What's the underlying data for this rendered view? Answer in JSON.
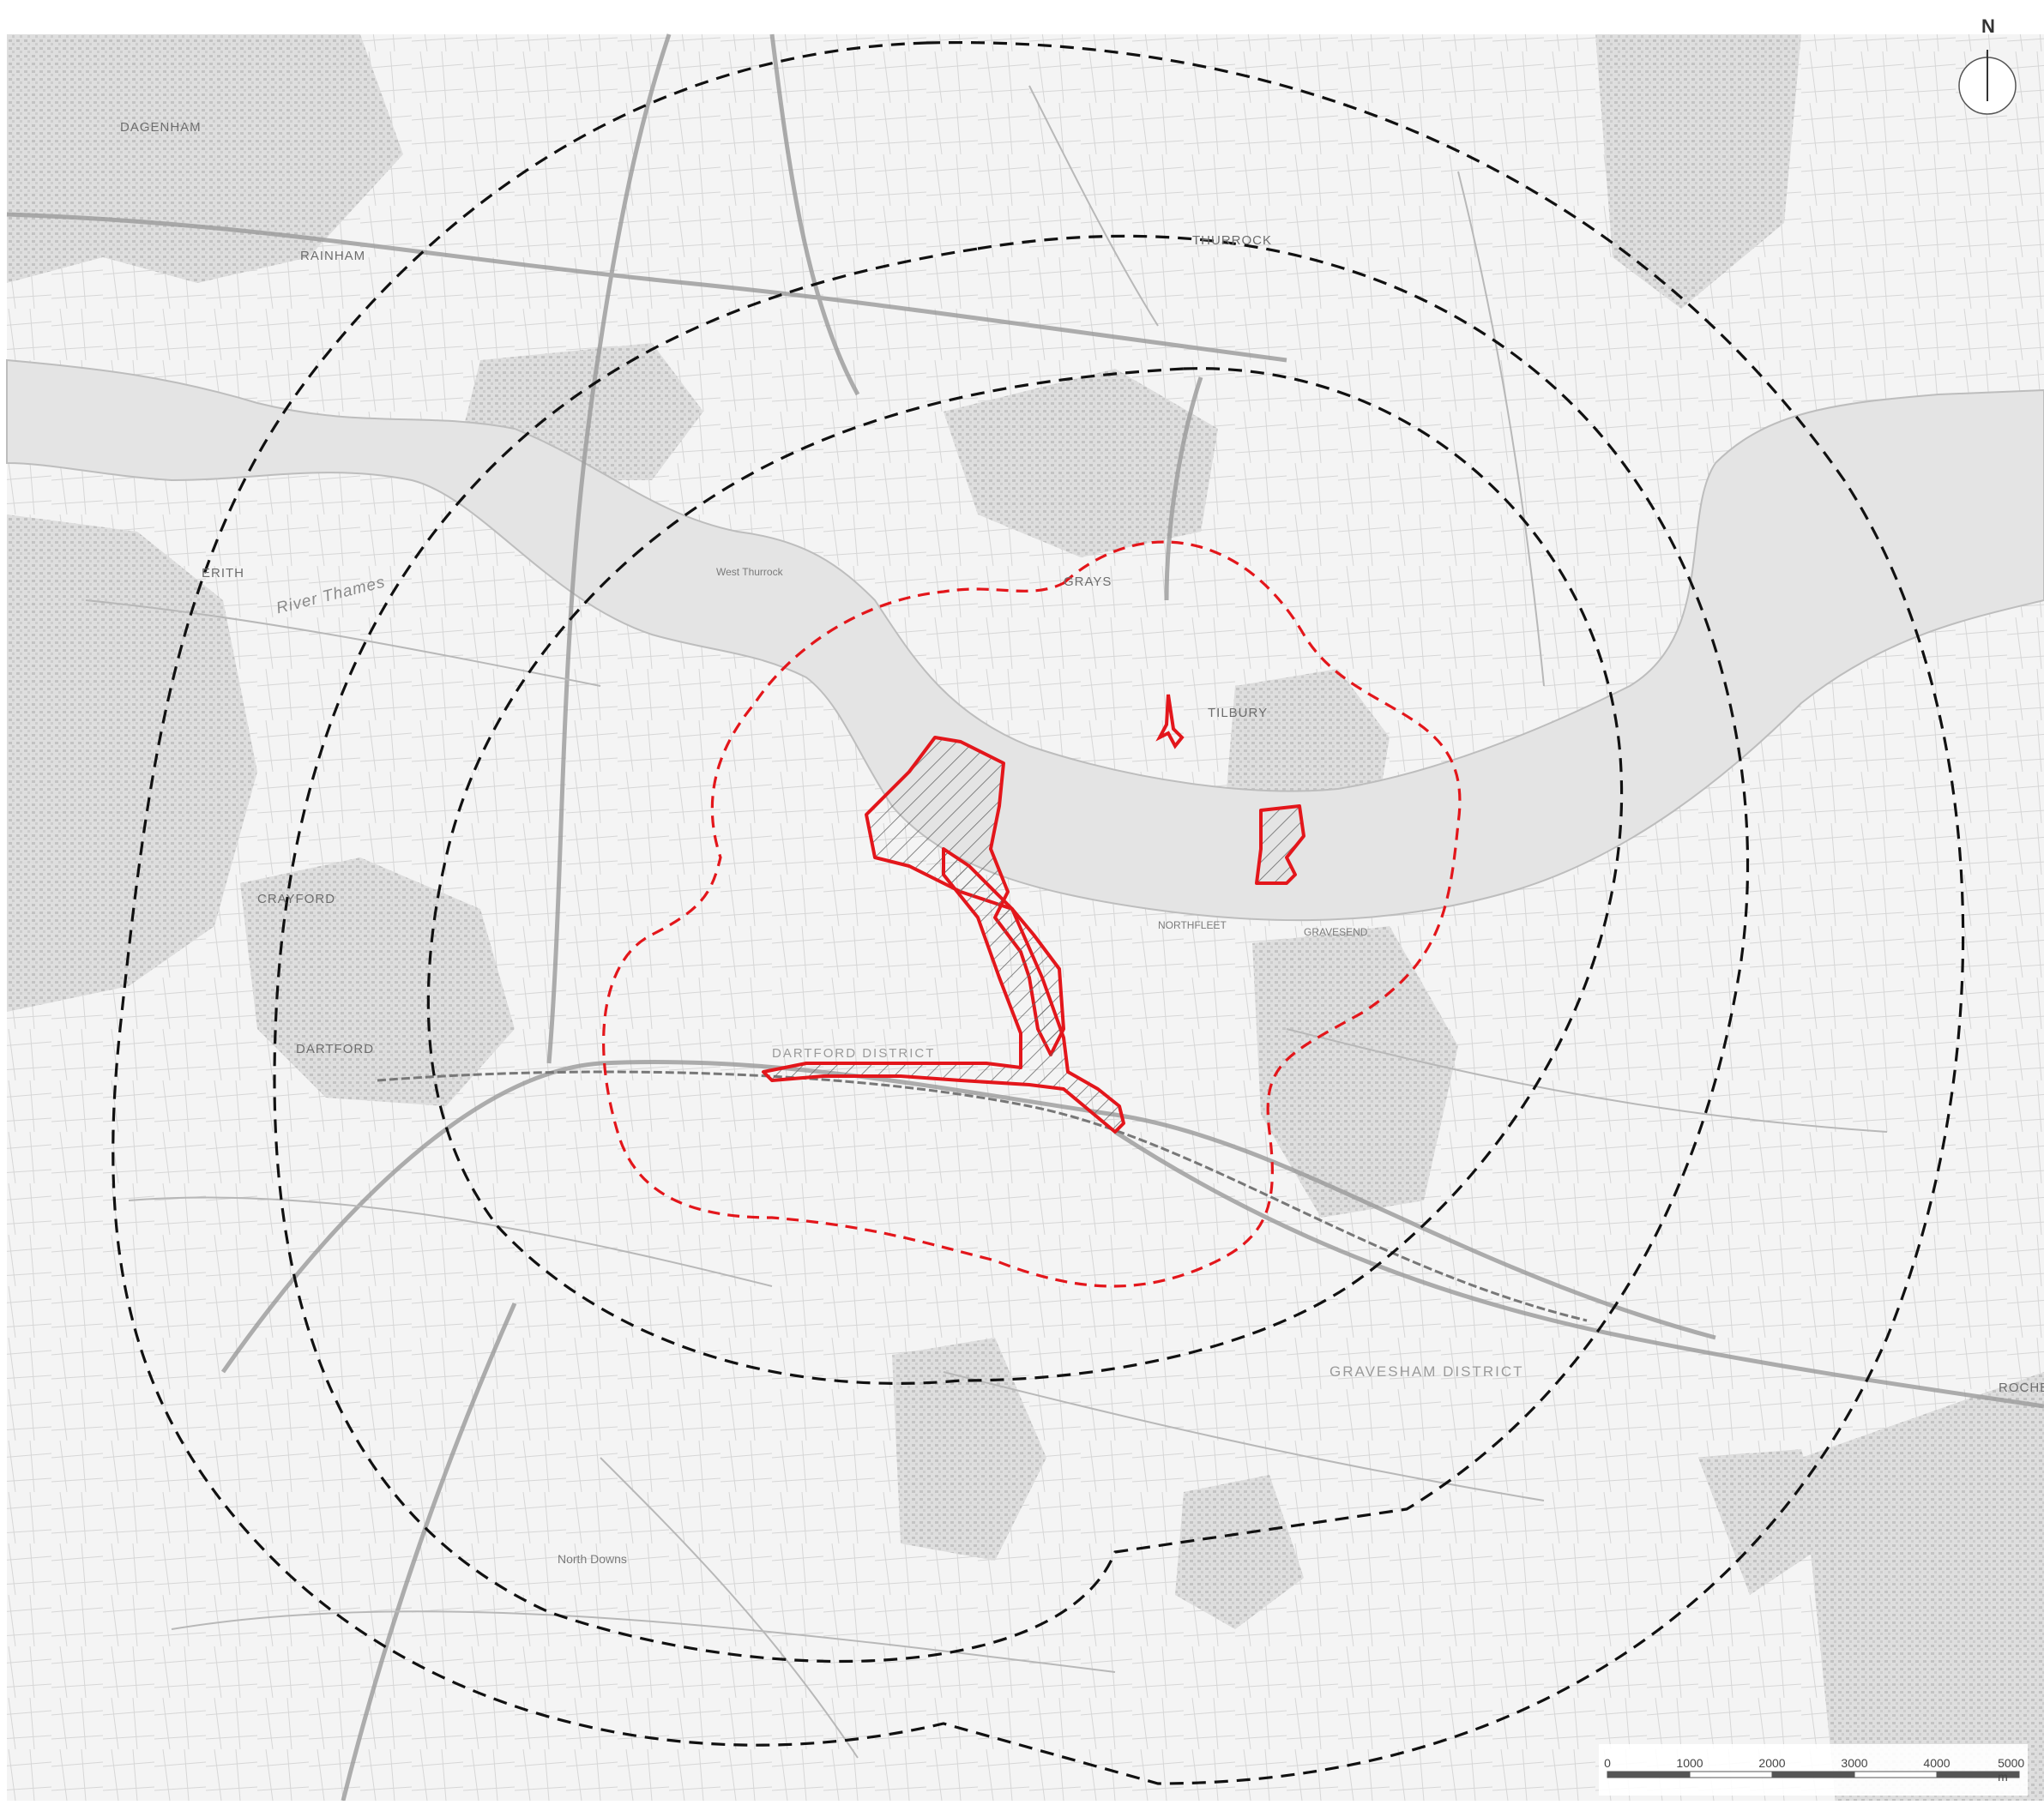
{
  "map": {
    "place_labels": [
      {
        "id": "dagenham",
        "text": "DAGENHAM"
      },
      {
        "id": "rainham",
        "text": "RAINHAM"
      },
      {
        "id": "erith",
        "text": "ERITH"
      },
      {
        "id": "crayford",
        "text": "CRAYFORD"
      },
      {
        "id": "dartford",
        "text": "DARTFORD"
      },
      {
        "id": "thurrock",
        "text": "THURROCK"
      },
      {
        "id": "grays",
        "text": "GRAYS"
      },
      {
        "id": "west-thurrock",
        "text": "West Thurrock"
      },
      {
        "id": "tilbury",
        "text": "TILBURY"
      },
      {
        "id": "northfleet",
        "text": "NORTHFLEET"
      },
      {
        "id": "gravesend",
        "text": "GRAVESEND"
      },
      {
        "id": "gravesham-district",
        "text": "GRAVESHAM DISTRICT"
      },
      {
        "id": "dartford-district",
        "text": "DARTFORD DISTRICT"
      },
      {
        "id": "north-downs",
        "text": "North Downs"
      },
      {
        "id": "rochester",
        "text": "ROCHEST"
      },
      {
        "id": "river-thames",
        "text": "River Thames"
      }
    ],
    "legend_colors": {
      "site_boundary": "#e3161b",
      "buffer_rings": "#111111",
      "inner_buffer": "#e3161b",
      "river": "#e6e6e6",
      "map_base": "#f4f4f4"
    },
    "north_arrow": {
      "label": "N",
      "icon": "north-arrow-icon"
    },
    "scale_bar": {
      "ticks": [
        "0",
        "1000",
        "2000",
        "3000",
        "4000",
        "5000 m"
      ],
      "max_distance_m": 5000
    }
  }
}
